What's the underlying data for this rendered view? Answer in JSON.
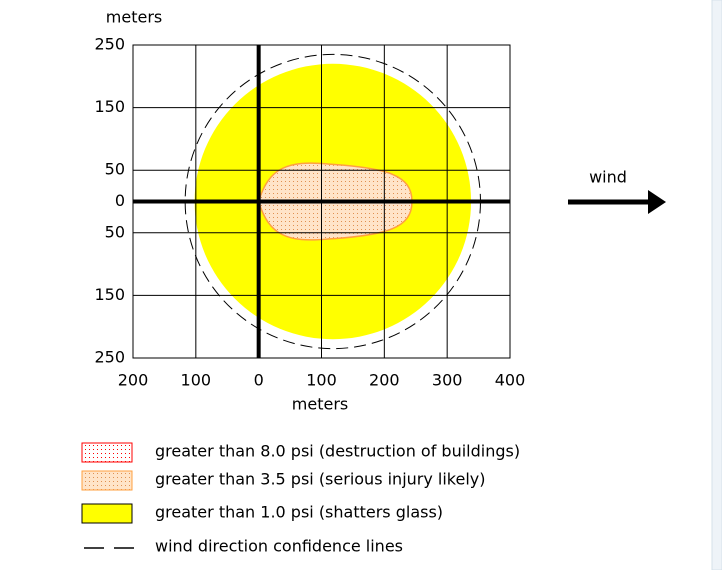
{
  "chart_data": {
    "type": "threat-zone",
    "y_label": "meters",
    "x_label": "meters",
    "wind_label": "wind",
    "xlim": [
      -200,
      400
    ],
    "ylim": [
      -250,
      250
    ],
    "xticks": [
      {
        "value": -200,
        "label": "200"
      },
      {
        "value": -100,
        "label": "100"
      },
      0,
      100,
      200,
      300,
      400
    ],
    "yticks": [
      250,
      150,
      50,
      0,
      {
        "value": -50,
        "label": "50"
      },
      {
        "value": -150,
        "label": "150"
      },
      {
        "value": -250,
        "label": "250"
      }
    ],
    "grid": true,
    "zones": [
      {
        "name": "greater than 8.0 psi (destruction of buildings)",
        "color": "#ff0000"
      },
      {
        "name": "greater than 3.5 psi (serious injury likely)",
        "color": "#ffa040",
        "x_start": 0,
        "x_end": 244,
        "half_width": 60
      },
      {
        "name": "greater than 1.0 psi (shatters glass)",
        "color": "#ffff00",
        "center_x": 118,
        "radius": 220
      }
    ],
    "confidence_lines": {
      "name": "wind direction confidence lines",
      "center_x": 118,
      "radius": 235
    }
  }
}
